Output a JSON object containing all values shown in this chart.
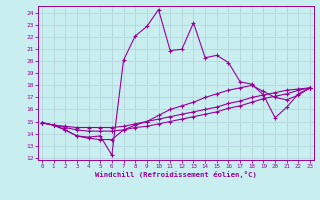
{
  "xlabel": "Windchill (Refroidissement éolien,°C)",
  "background_color": "#c8eef0",
  "grid_color": "#b0d0d8",
  "line_color": "#990099",
  "x_values": [
    0,
    1,
    2,
    3,
    4,
    5,
    6,
    7,
    8,
    9,
    10,
    11,
    12,
    13,
    14,
    15,
    16,
    17,
    18,
    19,
    20,
    21,
    22,
    23
  ],
  "ylim": [
    11.8,
    24.6
  ],
  "yticks": [
    12,
    13,
    14,
    15,
    16,
    17,
    18,
    19,
    20,
    21,
    22,
    23,
    24
  ],
  "xlim": [
    -0.3,
    23.3
  ],
  "series1": [
    14.9,
    14.7,
    14.3,
    13.8,
    13.7,
    13.8,
    12.2,
    20.1,
    22.1,
    22.9,
    24.3,
    20.9,
    21.0,
    23.2,
    20.3,
    20.5,
    19.9,
    18.3,
    18.1,
    17.2,
    15.3,
    16.2,
    17.3,
    17.8
  ],
  "series2": [
    14.9,
    14.7,
    14.6,
    14.5,
    14.5,
    14.5,
    14.5,
    14.6,
    14.8,
    15.0,
    15.2,
    15.4,
    15.6,
    15.8,
    16.0,
    16.2,
    16.5,
    16.7,
    17.0,
    17.2,
    17.4,
    17.6,
    17.7,
    17.8
  ],
  "series3": [
    14.9,
    14.7,
    14.5,
    14.3,
    14.2,
    14.2,
    14.2,
    14.3,
    14.5,
    14.6,
    14.8,
    15.0,
    15.2,
    15.4,
    15.6,
    15.8,
    16.1,
    16.3,
    16.6,
    16.9,
    17.1,
    17.3,
    17.6,
    17.8
  ],
  "series4": [
    14.9,
    14.7,
    14.3,
    13.8,
    13.6,
    13.5,
    13.5,
    14.3,
    14.7,
    15.0,
    15.5,
    16.0,
    16.3,
    16.6,
    17.0,
    17.3,
    17.6,
    17.8,
    18.0,
    17.5,
    17.0,
    16.8,
    17.2,
    17.8
  ]
}
